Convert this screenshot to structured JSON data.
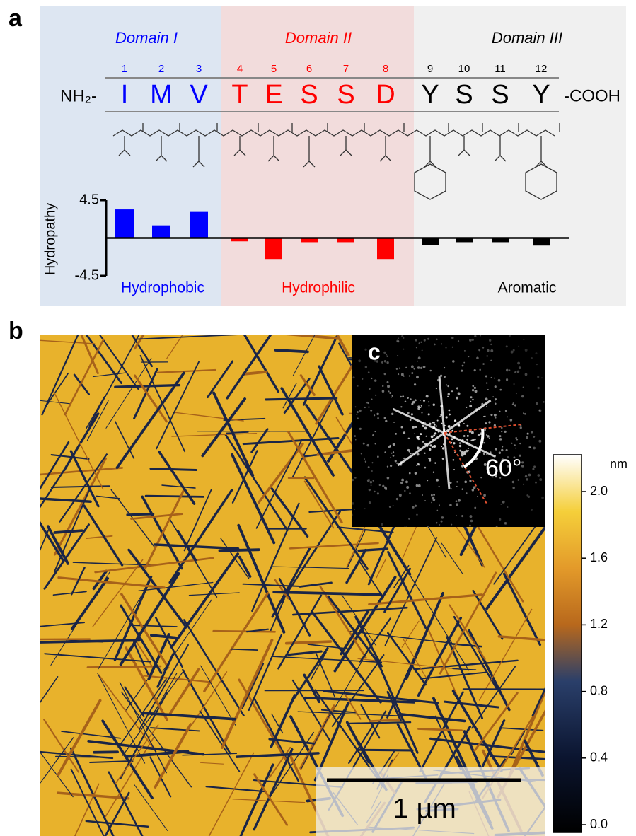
{
  "panel_a": {
    "label": "a",
    "domains": [
      {
        "title": "Domain I",
        "category": "Hydrophobic"
      },
      {
        "title": "Domain II",
        "category": "Hydrophilic"
      },
      {
        "title": "Domain III",
        "category": "Aromatic"
      }
    ],
    "n_terminus": "NH₂-",
    "c_terminus": "-COOH",
    "residues": [
      {
        "number": "1",
        "letter": "I",
        "domain": 0
      },
      {
        "number": "2",
        "letter": "M",
        "domain": 0
      },
      {
        "number": "3",
        "letter": "V",
        "domain": 0
      },
      {
        "number": "4",
        "letter": "T",
        "domain": 1
      },
      {
        "number": "5",
        "letter": "E",
        "domain": 1
      },
      {
        "number": "6",
        "letter": "S",
        "domain": 1
      },
      {
        "number": "7",
        "letter": "S",
        "domain": 1
      },
      {
        "number": "8",
        "letter": "D",
        "domain": 1
      },
      {
        "number": "9",
        "letter": "Y",
        "domain": 2
      },
      {
        "number": "10",
        "letter": "S",
        "domain": 2
      },
      {
        "number": "11",
        "letter": "S",
        "domain": 2
      },
      {
        "number": "12",
        "letter": "Y",
        "domain": 2
      }
    ],
    "chart_data": {
      "type": "bar",
      "y_label": "Hydropathy",
      "values": [
        3.4,
        1.5,
        3.1,
        -0.4,
        -2.5,
        -0.5,
        -0.5,
        -2.5,
        -0.8,
        -0.5,
        -0.5,
        -0.9
      ],
      "colors": [
        "#0000ff",
        "#ff0000",
        "#000000"
      ],
      "ylim": [
        -4.5,
        4.5
      ],
      "yticks": [
        4.5,
        -4.5
      ]
    }
  },
  "panel_b": {
    "label": "b",
    "scale_bar": "1 µm",
    "colorbar": {
      "unit": "nm",
      "clim": [
        0,
        2.2
      ],
      "ticks": [
        {
          "value": 0,
          "label": "0.0"
        },
        {
          "value": 0.4,
          "label": "0.4"
        },
        {
          "value": 0.8,
          "label": "0.8"
        },
        {
          "value": 1.2,
          "label": "1.2"
        },
        {
          "value": 1.6,
          "label": "1.6"
        },
        {
          "value": 2.0,
          "label": "2.0"
        }
      ]
    }
  },
  "panel_c": {
    "label": "c",
    "angle": "60°"
  }
}
